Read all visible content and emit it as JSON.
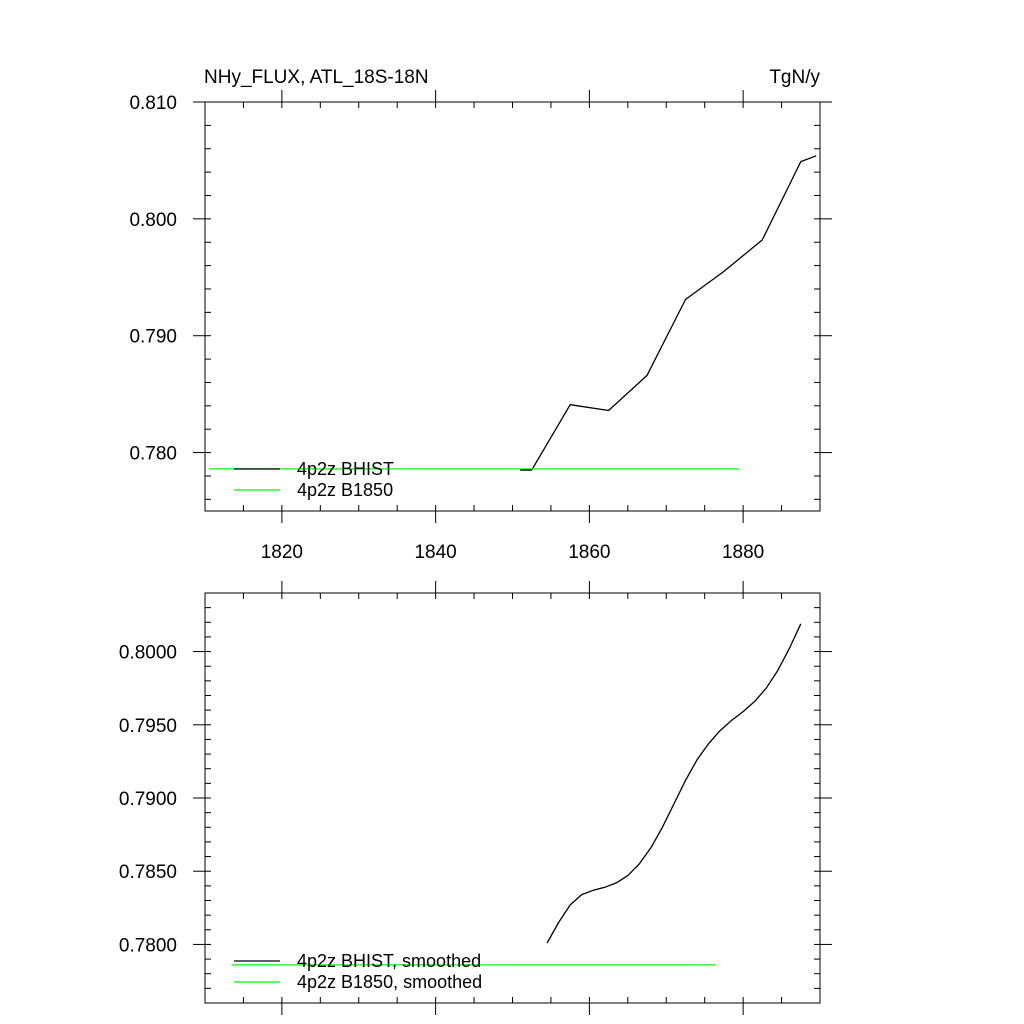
{
  "chart_data": [
    {
      "type": "line",
      "title": "NHy_FLUX, ATL_18S-18N",
      "units": "TgN/y",
      "xlim": [
        1810,
        1890
      ],
      "ylim": [
        0.775,
        0.81
      ],
      "x_ticks": [
        1820,
        1840,
        1860,
        1880
      ],
      "x_tick_labels": [
        "1820",
        "1840",
        "1860",
        "1880"
      ],
      "y_ticks": [
        0.78,
        0.79,
        0.8,
        0.81
      ],
      "y_tick_labels": [
        "0.780",
        "0.790",
        "0.800",
        "0.810"
      ],
      "legend_position": "bottom-left",
      "series": [
        {
          "name": "4p2z BHIST",
          "color": "#000000",
          "x": [
            1851,
            1852.5,
            1857.5,
            1862.5,
            1866.5,
            1867.5,
            1872.5,
            1877.5,
            1882.5,
            1887.5,
            1889.5
          ],
          "y": [
            0.7785,
            0.7785,
            0.7841,
            0.7836,
            0.786,
            0.7866,
            0.7931,
            0.7955,
            0.7982,
            0.8049,
            0.8054
          ]
        },
        {
          "name": "4p2z B1850",
          "color": "#00ff00",
          "x": [
            1810.5,
            1879.5
          ],
          "y": [
            0.7786,
            0.7786
          ]
        }
      ]
    },
    {
      "type": "line",
      "title": "",
      "xlim": [
        1810,
        1890
      ],
      "ylim": [
        0.776,
        0.804
      ],
      "x_ticks": [
        1820,
        1840,
        1860,
        1880
      ],
      "x_tick_labels": [],
      "y_ticks": [
        0.78,
        0.785,
        0.79,
        0.795,
        0.8
      ],
      "y_tick_labels": [
        "0.7800",
        "0.7850",
        "0.7900",
        "0.7950",
        "0.8000"
      ],
      "legend_position": "bottom-left",
      "series": [
        {
          "name": "4p2z BHIST, smoothed",
          "color": "#000000",
          "x": [
            1854.5,
            1856,
            1857.5,
            1859,
            1860.5,
            1862,
            1863.5,
            1865,
            1866.5,
            1868,
            1869.5,
            1871,
            1872.5,
            1874,
            1875.5,
            1877,
            1878.5,
            1880,
            1881.5,
            1883,
            1884.5,
            1886,
            1887.5
          ],
          "y": [
            0.7801,
            0.7815,
            0.7827,
            0.7834,
            0.7837,
            0.7839,
            0.7842,
            0.7847,
            0.7855,
            0.7866,
            0.788,
            0.7896,
            0.7912,
            0.7926,
            0.7937,
            0.7946,
            0.7953,
            0.7959,
            0.7966,
            0.7975,
            0.7987,
            0.8002,
            0.8019
          ]
        },
        {
          "name": "4p2z B1850, smoothed",
          "color": "#00ff00",
          "x": [
            1813.5,
            1876.5
          ],
          "y": [
            0.7786,
            0.7786
          ]
        }
      ]
    }
  ]
}
